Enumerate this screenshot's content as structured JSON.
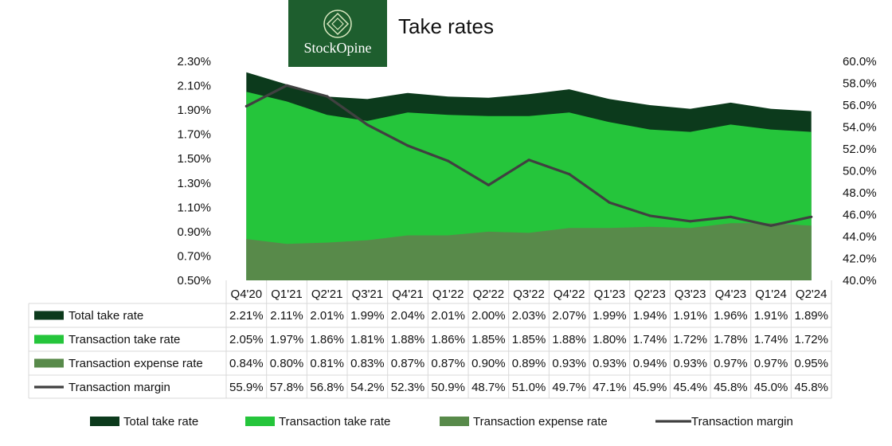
{
  "header": {
    "title": "Take rates",
    "logo_text": "StockOpine"
  },
  "colors": {
    "total_take_rate": "#0c3a1c",
    "transaction_take_rate": "#25c53b",
    "transaction_expense_rate": "#588a4a",
    "transaction_margin": "#404040",
    "logo_bg": "#1e5e2e"
  },
  "chart_data": {
    "type": "area",
    "categories": [
      "Q4'20",
      "Q1'21",
      "Q2'21",
      "Q3'21",
      "Q4'21",
      "Q1'22",
      "Q2'22",
      "Q3'22",
      "Q4'22",
      "Q1'23",
      "Q2'23",
      "Q3'23",
      "Q4'23",
      "Q1'24",
      "Q2'24"
    ],
    "y_left": {
      "range": [
        0.5,
        2.3
      ],
      "ticks": [
        "2.30%",
        "2.10%",
        "1.90%",
        "1.70%",
        "1.50%",
        "1.30%",
        "1.10%",
        "0.90%",
        "0.70%",
        "0.50%"
      ]
    },
    "y_right": {
      "range": [
        40.0,
        60.0
      ],
      "ticks": [
        "60.0%",
        "58.0%",
        "56.0%",
        "54.0%",
        "52.0%",
        "50.0%",
        "48.0%",
        "46.0%",
        "44.0%",
        "42.0%",
        "40.0%"
      ]
    },
    "series": [
      {
        "name": "Total take rate",
        "kind": "area",
        "axis": "left",
        "values": [
          2.21,
          2.11,
          2.01,
          1.99,
          2.04,
          2.01,
          2.0,
          2.03,
          2.07,
          1.99,
          1.94,
          1.91,
          1.96,
          1.91,
          1.89
        ],
        "labels": [
          "2.21%",
          "2.11%",
          "2.01%",
          "1.99%",
          "2.04%",
          "2.01%",
          "2.00%",
          "2.03%",
          "2.07%",
          "1.99%",
          "1.94%",
          "1.91%",
          "1.96%",
          "1.91%",
          "1.89%"
        ]
      },
      {
        "name": "Transaction take rate",
        "kind": "area",
        "axis": "left",
        "values": [
          2.05,
          1.97,
          1.86,
          1.81,
          1.88,
          1.86,
          1.85,
          1.85,
          1.88,
          1.8,
          1.74,
          1.72,
          1.78,
          1.74,
          1.72
        ],
        "labels": [
          "2.05%",
          "1.97%",
          "1.86%",
          "1.81%",
          "1.88%",
          "1.86%",
          "1.85%",
          "1.85%",
          "1.88%",
          "1.80%",
          "1.74%",
          "1.72%",
          "1.78%",
          "1.74%",
          "1.72%"
        ]
      },
      {
        "name": "Transaction expense rate",
        "kind": "area",
        "axis": "left",
        "values": [
          0.84,
          0.8,
          0.81,
          0.83,
          0.87,
          0.87,
          0.9,
          0.89,
          0.93,
          0.93,
          0.94,
          0.93,
          0.97,
          0.97,
          0.95
        ],
        "labels": [
          "0.84%",
          "0.80%",
          "0.81%",
          "0.83%",
          "0.87%",
          "0.87%",
          "0.90%",
          "0.89%",
          "0.93%",
          "0.93%",
          "0.94%",
          "0.93%",
          "0.97%",
          "0.97%",
          "0.95%"
        ]
      },
      {
        "name": "Transaction margin",
        "kind": "line",
        "axis": "right",
        "values": [
          55.9,
          57.8,
          56.8,
          54.2,
          52.3,
          50.9,
          48.7,
          51.0,
          49.7,
          47.1,
          45.9,
          45.4,
          45.8,
          45.0,
          45.8
        ],
        "labels": [
          "55.9%",
          "57.8%",
          "56.8%",
          "54.2%",
          "52.3%",
          "50.9%",
          "48.7%",
          "51.0%",
          "49.7%",
          "47.1%",
          "45.9%",
          "45.4%",
          "45.8%",
          "45.0%",
          "45.8%"
        ]
      }
    ],
    "legend": "bottom",
    "data_table": true,
    "grid": false
  }
}
